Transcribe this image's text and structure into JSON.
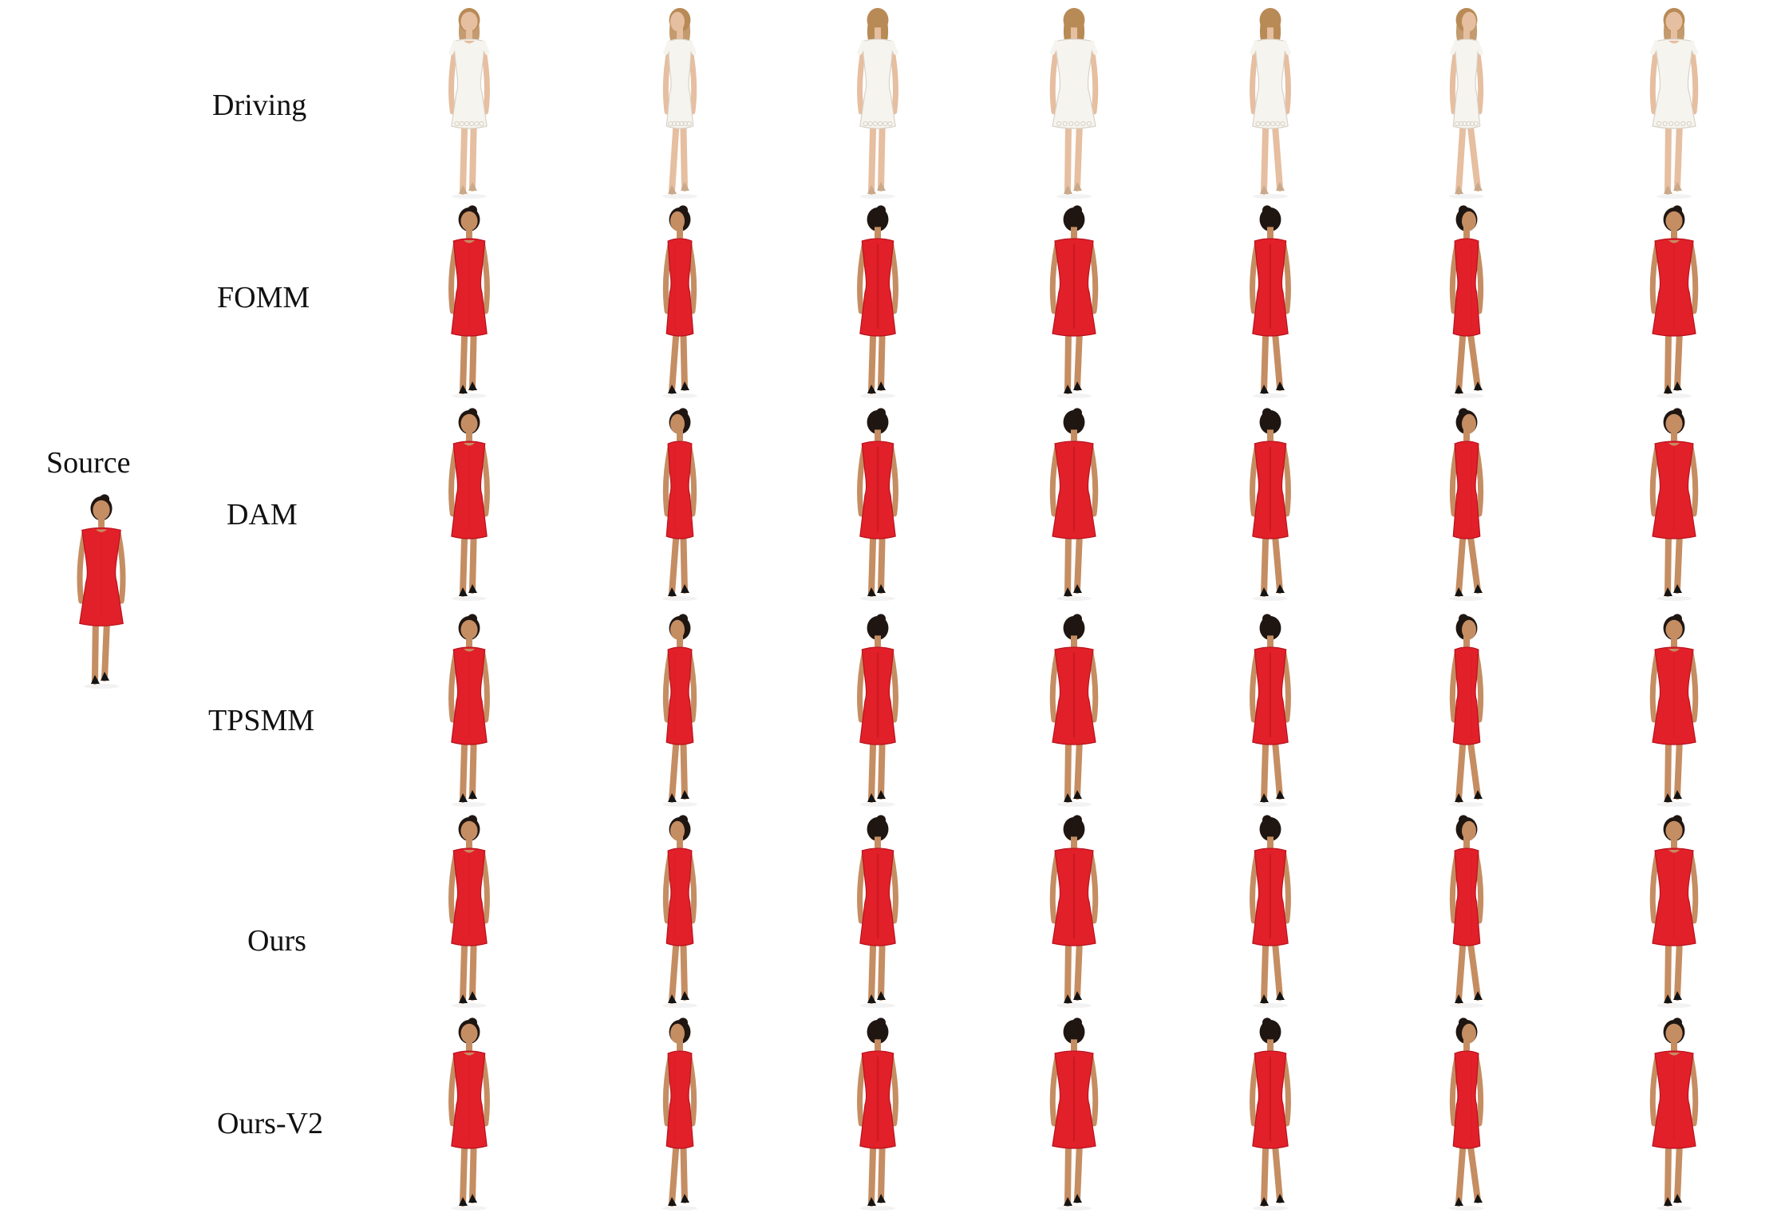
{
  "figure": {
    "source_label": "Source",
    "row_labels": [
      "Driving",
      "FOMM",
      "DAM",
      "TPSMM",
      "Ours",
      "Ours-V2"
    ],
    "columns": 7,
    "colors": {
      "driving_dress": "#f6f4ef",
      "driving_outline": "#d9d2c6",
      "generated_dress": "#e2202a",
      "generated_dress_shade": "#b8121c",
      "skin": "#c58d62",
      "skin_light": "#e6bea0",
      "hair_dark": "#1f1612",
      "hair_blonde": "#b88a55",
      "shoe_dark": "#141414",
      "shoe_light": "#c9a98a"
    },
    "poses": [
      "front-three-quarter",
      "side",
      "back-three-quarter",
      "back",
      "back-three-quarter-right",
      "side-right",
      "front"
    ]
  }
}
